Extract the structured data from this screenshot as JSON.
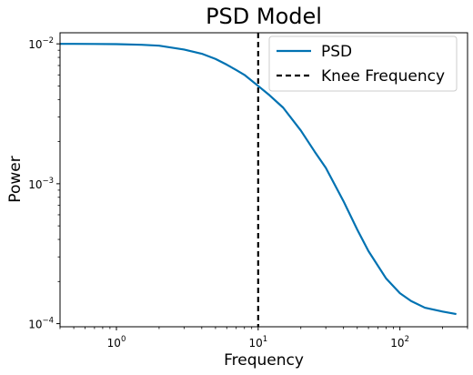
{
  "chart_data": {
    "type": "line",
    "title": "PSD Model",
    "xlabel": "Frequency",
    "ylabel": "Power",
    "xscale": "log",
    "yscale": "log",
    "xlim": [
      0.4,
      300
    ],
    "ylim": [
      9.5e-05,
      0.012
    ],
    "grid": false,
    "legend_position": "top-right",
    "x_ticks": [
      {
        "value": 1,
        "base": "10",
        "exponent": "0"
      },
      {
        "value": 10,
        "base": "10",
        "exponent": "1"
      },
      {
        "value": 100,
        "base": "10",
        "exponent": "2"
      }
    ],
    "y_ticks": [
      {
        "value": 0.0001,
        "base": "10",
        "exponent": "−4"
      },
      {
        "value": 0.001,
        "base": "10",
        "exponent": "−3"
      },
      {
        "value": 0.01,
        "base": "10",
        "exponent": "−2"
      }
    ],
    "series": [
      {
        "name": "PSD",
        "color": "#0072B2",
        "style": "solid",
        "x": [
          0.4,
          0.5,
          0.7,
          1,
          1.5,
          2,
          3,
          4,
          5,
          6,
          7,
          8,
          10,
          12,
          15,
          20,
          25,
          30,
          40,
          50,
          60,
          80,
          100,
          120,
          150,
          200,
          250
        ],
        "y": [
          0.01,
          0.01,
          0.00998,
          0.00995,
          0.00985,
          0.0097,
          0.0091,
          0.0085,
          0.0078,
          0.0071,
          0.0065,
          0.006,
          0.005,
          0.0043,
          0.0035,
          0.0024,
          0.0017,
          0.0013,
          0.00075,
          0.00047,
          0.00033,
          0.00021,
          0.000165,
          0.000145,
          0.00013,
          0.000122,
          0.000117
        ]
      }
    ],
    "vlines": [
      {
        "name": "Knee Frequency",
        "x": 10,
        "color": "#000000",
        "style": "dashed"
      }
    ]
  }
}
